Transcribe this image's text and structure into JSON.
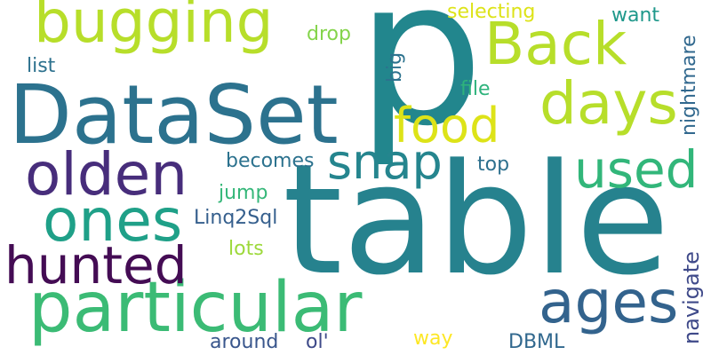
{
  "words": [
    {
      "id": "p",
      "text": "p",
      "color": "#22868d",
      "orientation": "horizontal"
    },
    {
      "id": "table",
      "text": "table",
      "color": "#26828e",
      "orientation": "horizontal"
    },
    {
      "id": "dataset",
      "text": "DataSet",
      "color": "#2c728e",
      "orientation": "horizontal"
    },
    {
      "id": "particular",
      "text": "particular",
      "color": "#3bbb75",
      "orientation": "horizontal"
    },
    {
      "id": "bugging",
      "text": "bugging",
      "color": "#b7de2a",
      "orientation": "horizontal"
    },
    {
      "id": "back",
      "text": "Back",
      "color": "#b7de2a",
      "orientation": "horizontal"
    },
    {
      "id": "olden",
      "text": "olden",
      "color": "#472d7b",
      "orientation": "horizontal"
    },
    {
      "id": "days",
      "text": "days",
      "color": "#b7de2a",
      "orientation": "horizontal"
    },
    {
      "id": "food",
      "text": "food",
      "color": "#dde318",
      "orientation": "horizontal"
    },
    {
      "id": "ones",
      "text": "ones",
      "color": "#1fa088",
      "orientation": "horizontal"
    },
    {
      "id": "hunted",
      "text": "hunted",
      "color": "#440c54",
      "orientation": "horizontal"
    },
    {
      "id": "snap",
      "text": "snap",
      "color": "#25858e",
      "orientation": "horizontal"
    },
    {
      "id": "used",
      "text": "used",
      "color": "#32b67a",
      "orientation": "horizontal"
    },
    {
      "id": "ages",
      "text": "ages",
      "color": "#33638d",
      "orientation": "horizontal"
    },
    {
      "id": "selecting",
      "text": "selecting",
      "color": "#dde318",
      "orientation": "horizontal"
    },
    {
      "id": "want",
      "text": "want",
      "color": "#1f988b",
      "orientation": "horizontal"
    },
    {
      "id": "drop",
      "text": "drop",
      "color": "#84d44b",
      "orientation": "horizontal"
    },
    {
      "id": "list",
      "text": "list",
      "color": "#2d718e",
      "orientation": "horizontal"
    },
    {
      "id": "big",
      "text": "big",
      "color": "#2c728e",
      "orientation": "vertical"
    },
    {
      "id": "file",
      "text": "file",
      "color": "#2eb37c",
      "orientation": "horizontal"
    },
    {
      "id": "nightmare",
      "text": "nightmare",
      "color": "#31688e",
      "orientation": "vertical"
    },
    {
      "id": "becomes",
      "text": "becomes",
      "color": "#2c728e",
      "orientation": "horizontal"
    },
    {
      "id": "top",
      "text": "top",
      "color": "#2d708e",
      "orientation": "horizontal"
    },
    {
      "id": "jump",
      "text": "jump",
      "color": "#35b779",
      "orientation": "horizontal"
    },
    {
      "id": "linq2sql",
      "text": "Linq2Sql",
      "color": "#355f8d",
      "orientation": "horizontal"
    },
    {
      "id": "lots",
      "text": "lots",
      "color": "#9dd93b",
      "orientation": "horizontal"
    },
    {
      "id": "navigate",
      "text": "navigate",
      "color": "#3e4989",
      "orientation": "vertical"
    },
    {
      "id": "around",
      "text": "around",
      "color": "#39568c",
      "orientation": "horizontal"
    },
    {
      "id": "ol",
      "text": "ol'",
      "color": "#3e4a89",
      "orientation": "horizontal"
    },
    {
      "id": "way",
      "text": "way",
      "color": "#fde725",
      "orientation": "horizontal"
    },
    {
      "id": "dbml",
      "text": "DBML",
      "color": "#31688e",
      "orientation": "horizontal"
    }
  ]
}
